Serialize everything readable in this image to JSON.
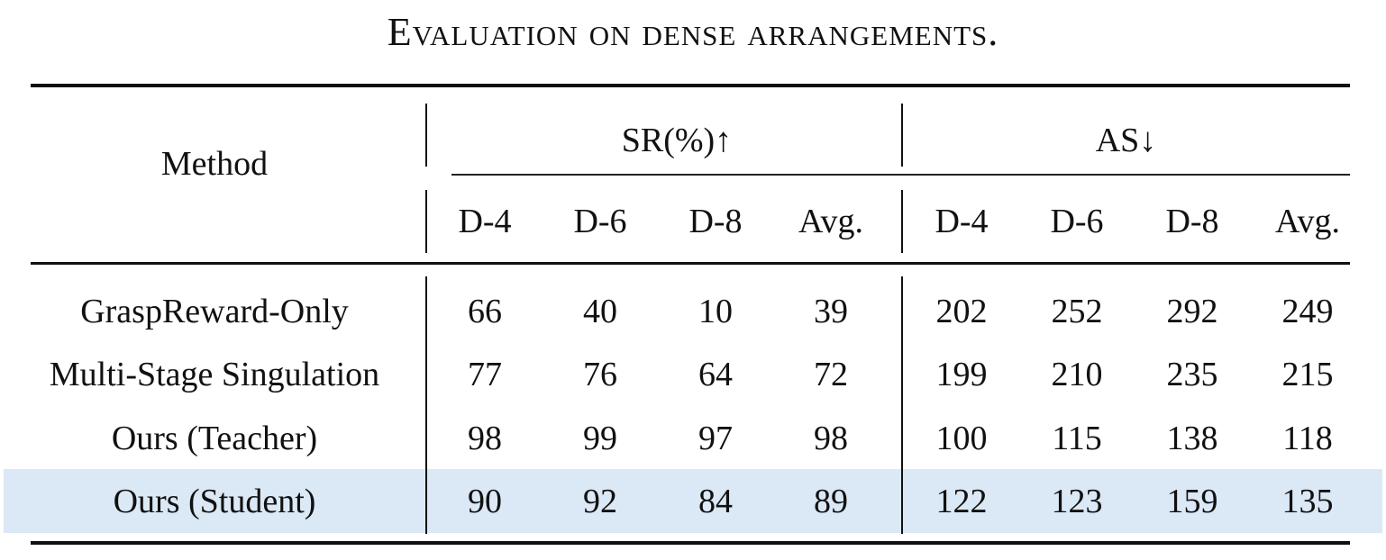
{
  "caption": "Evaluation on dense arrangements.",
  "table": {
    "header": {
      "method": "Method",
      "sr_group": "SR(%)↑",
      "as_group": "AS↓",
      "sub_columns": [
        "D-4",
        "D-6",
        "D-8",
        "Avg.",
        "D-4",
        "D-6",
        "D-8",
        "Avg."
      ]
    },
    "rows": [
      {
        "method": "GraspReward-Only",
        "values": [
          "66",
          "40",
          "10",
          "39",
          "202",
          "252",
          "292",
          "249"
        ],
        "highlighted": false
      },
      {
        "method": "Multi-Stage Singulation",
        "values": [
          "77",
          "76",
          "64",
          "72",
          "199",
          "210",
          "235",
          "215"
        ],
        "highlighted": false
      },
      {
        "method": "Ours (Teacher)",
        "values": [
          "98",
          "99",
          "97",
          "98",
          "100",
          "115",
          "138",
          "118"
        ],
        "highlighted": false
      },
      {
        "method": "Ours (Student)",
        "values": [
          "90",
          "92",
          "84",
          "89",
          "122",
          "123",
          "159",
          "135"
        ],
        "highlighted": true
      }
    ],
    "highlight_color": "#dbe8f5"
  }
}
